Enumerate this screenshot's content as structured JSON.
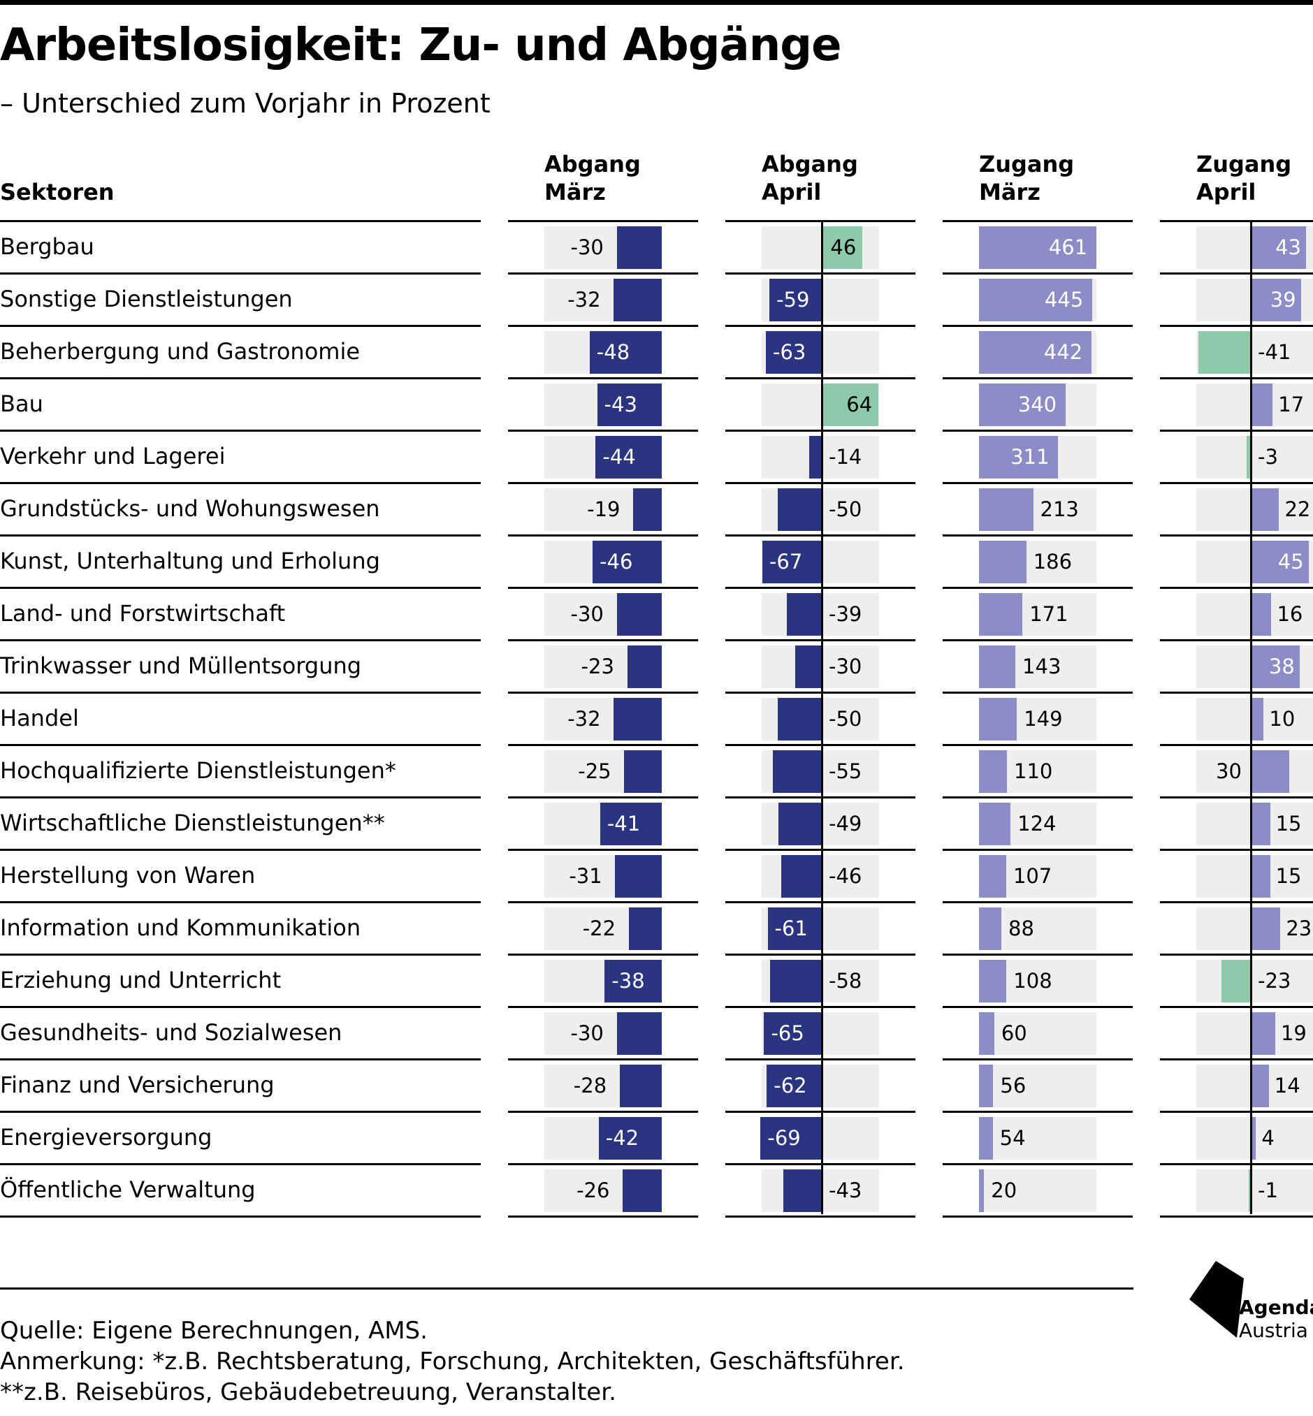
{
  "title": "Arbeitslosigkeit: Zu- und Abgänge",
  "subtitle": "– Unterschied zum Vorjahr in Prozent",
  "sector_header": "Sektoren",
  "columns": [
    {
      "line1": "Abgang",
      "line2": "März"
    },
    {
      "line1": "Abgang",
      "line2": "April"
    },
    {
      "line1": "Zugang",
      "line2": "März"
    },
    {
      "line1": "Zugang",
      "line2": "April"
    }
  ],
  "chart_data": {
    "type": "bar",
    "categories": [
      "Bergbau",
      "Sonstige Dienstleistungen",
      "Beherbergung und Gastronomie",
      "Bau",
      "Verkehr und Lagerei",
      "Grundstücks- und Wohungswesen",
      "Kunst, Unterhaltung und Erholung",
      "Land- und Forstwirtschaft",
      "Trinkwasser und Müllentsorgung",
      "Handel",
      "Hochqualifizierte Dienstleistungen*",
      "Wirtschaftliche Dienstleistungen**",
      "Herstellung von Waren",
      "Information und Kommunikation",
      "Erziehung und Unterricht",
      "Gesundheits- und Sozialwesen",
      "Finanz und Versicherung",
      "Energieversorgung",
      "Öffentliche Verwaltung"
    ],
    "series": [
      {
        "name": "Abgang März",
        "values": [
          -30,
          -32,
          -48,
          -43,
          -44,
          -19,
          -46,
          -30,
          -23,
          -32,
          -25,
          -41,
          -31,
          -22,
          -38,
          -30,
          -28,
          -42,
          -26
        ]
      },
      {
        "name": "Abgang April",
        "values": [
          46,
          -59,
          -63,
          64,
          -14,
          -50,
          -67,
          -39,
          -30,
          -50,
          -55,
          -49,
          -46,
          -61,
          -58,
          -65,
          -62,
          -69,
          -43
        ]
      },
      {
        "name": "Zugang März",
        "values": [
          461,
          445,
          442,
          340,
          311,
          213,
          186,
          171,
          143,
          149,
          110,
          124,
          107,
          88,
          108,
          60,
          56,
          54,
          20
        ]
      },
      {
        "name": "Zugang April",
        "values": [
          43,
          39,
          -41,
          17,
          -3,
          22,
          45,
          16,
          38,
          10,
          30,
          15,
          15,
          23,
          -23,
          19,
          14,
          4,
          -1
        ]
      }
    ],
    "colors": {
      "abgang": "#2a3480",
      "zugang": "#8c8cc6",
      "negative_zugang": "#8dcaa9",
      "positive_abgang": "#8dcaa9",
      "track": "#eeeeee"
    }
  },
  "footer": {
    "source": "Quelle: Eigene Berechnungen, AMS.",
    "note1": "Anmerkung: *z.B. Rechtsberatung, Forschung, Architekten, Geschäftsführer.",
    "note2": "**z.B. Reisebüros, Gebäudebetreuung, Veranstalter."
  },
  "logo": {
    "line1": "Agenda",
    "line2": "Austria"
  }
}
